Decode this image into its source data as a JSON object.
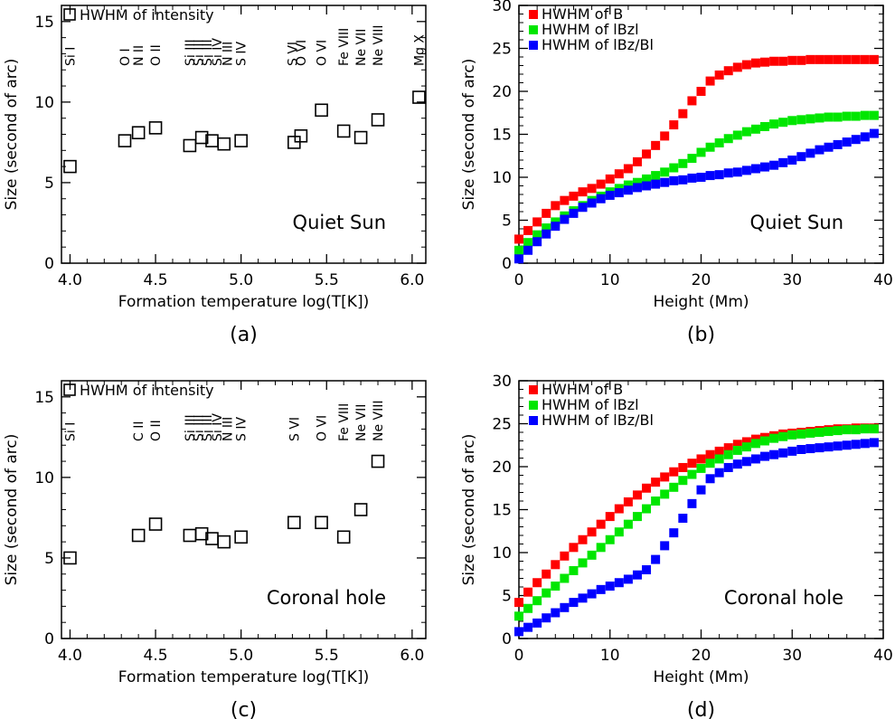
{
  "chart_data": [
    {
      "id": "a",
      "type": "scatter",
      "caption": "(a)",
      "xlabel": "Formation temperature log(T[K])",
      "ylabel": "Size (second of arc)",
      "annotation": "Quiet Sun",
      "xlim": [
        3.95,
        6.08
      ],
      "ylim": [
        0,
        16
      ],
      "xticks": [
        "4.0",
        "4.5",
        "5.0",
        "5.5",
        "6.0"
      ],
      "yticks": [
        "0",
        "5",
        "10",
        "15"
      ],
      "legend": [
        "HWHM of intensity"
      ],
      "marker_color": "#000000",
      "points": [
        [
          4.0,
          6.0
        ],
        [
          4.32,
          7.6
        ],
        [
          4.4,
          8.1
        ],
        [
          4.5,
          8.4
        ],
        [
          4.7,
          7.3
        ],
        [
          4.77,
          7.8
        ],
        [
          4.83,
          7.6
        ],
        [
          4.9,
          7.4
        ],
        [
          5.0,
          7.6
        ],
        [
          5.31,
          7.5
        ],
        [
          5.35,
          7.9
        ],
        [
          5.47,
          9.5
        ],
        [
          5.6,
          8.2
        ],
        [
          5.7,
          7.8
        ],
        [
          5.8,
          8.9
        ],
        [
          6.04,
          10.3
        ]
      ],
      "ion_labels": [
        {
          "x": 4.0,
          "text": "Si I"
        },
        {
          "x": 4.32,
          "text": "O I"
        },
        {
          "x": 4.4,
          "text": "N II"
        },
        {
          "x": 4.5,
          "text": "O II"
        },
        {
          "x": 4.7,
          "text": "Si III"
        },
        {
          "x": 4.75,
          "text": "Si III"
        },
        {
          "x": 4.8,
          "text": "Si III"
        },
        {
          "x": 4.86,
          "text": "Si IV"
        },
        {
          "x": 4.92,
          "text": "N III"
        },
        {
          "x": 5.0,
          "text": "S IV"
        },
        {
          "x": 5.3,
          "text": "S VI"
        },
        {
          "x": 5.35,
          "text": "O VI"
        },
        {
          "x": 5.47,
          "text": "O VI"
        },
        {
          "x": 5.6,
          "text": "Fe VIII"
        },
        {
          "x": 5.7,
          "text": "Ne VII"
        },
        {
          "x": 5.8,
          "text": "Ne VIII"
        },
        {
          "x": 6.04,
          "text": "Mg X"
        }
      ]
    },
    {
      "id": "b",
      "type": "scatter",
      "caption": "(b)",
      "xlabel": "Height (Mm)",
      "ylabel": "Size (second of arc)",
      "annotation": "Quiet Sun",
      "xlim": [
        0,
        40
      ],
      "ylim": [
        0,
        30
      ],
      "xticks": [
        "0",
        "10",
        "20",
        "30",
        "40"
      ],
      "yticks": [
        "0",
        "5",
        "10",
        "15",
        "20",
        "25",
        "30"
      ],
      "x": [
        0,
        1,
        2,
        3,
        4,
        5,
        6,
        7,
        8,
        9,
        10,
        11,
        12,
        13,
        14,
        15,
        16,
        17,
        18,
        19,
        20,
        21,
        22,
        23,
        24,
        25,
        26,
        27,
        28,
        29,
        30,
        31,
        32,
        33,
        34,
        35,
        36,
        37,
        38,
        39
      ],
      "series": [
        {
          "name": "HWHM of B",
          "color": "#ff0000",
          "values": [
            2.8,
            3.8,
            4.8,
            5.8,
            6.7,
            7.3,
            7.8,
            8.3,
            8.7,
            9.2,
            9.8,
            10.4,
            11.0,
            11.8,
            12.7,
            13.7,
            14.8,
            16.1,
            17.4,
            18.9,
            20.0,
            21.2,
            21.9,
            22.4,
            22.8,
            23.1,
            23.3,
            23.4,
            23.5,
            23.5,
            23.6,
            23.6,
            23.7,
            23.7,
            23.7,
            23.7,
            23.7,
            23.7,
            23.7,
            23.7
          ]
        },
        {
          "name": "HWHM of |Bz|",
          "color": "#00e600",
          "values": [
            1.5,
            2.4,
            3.3,
            4.1,
            4.8,
            5.5,
            6.1,
            6.7,
            7.3,
            7.8,
            8.3,
            8.7,
            9.1,
            9.4,
            9.8,
            10.2,
            10.6,
            11.1,
            11.6,
            12.2,
            12.9,
            13.5,
            14.0,
            14.5,
            14.9,
            15.3,
            15.6,
            15.9,
            16.2,
            16.4,
            16.6,
            16.7,
            16.8,
            16.9,
            17.0,
            17.0,
            17.1,
            17.1,
            17.2,
            17.2
          ]
        },
        {
          "name": "HWHM of |Bz/B|",
          "color": "#0000ff",
          "values": [
            0.5,
            1.5,
            2.5,
            3.4,
            4.3,
            5.1,
            5.8,
            6.5,
            7.0,
            7.5,
            7.9,
            8.2,
            8.5,
            8.8,
            9.0,
            9.2,
            9.4,
            9.6,
            9.7,
            9.9,
            10.0,
            10.2,
            10.3,
            10.5,
            10.6,
            10.8,
            11.0,
            11.2,
            11.4,
            11.7,
            12.0,
            12.4,
            12.8,
            13.2,
            13.5,
            13.8,
            14.1,
            14.4,
            14.7,
            15.1
          ]
        }
      ],
      "legend": [
        "HWHM of B",
        "HWHM of lBzl",
        "HWHM of lBz/Bl"
      ]
    },
    {
      "id": "c",
      "type": "scatter",
      "caption": "(c)",
      "xlabel": "Formation temperature log(T[K])",
      "ylabel": "Size (second of arc)",
      "annotation": "Coronal hole",
      "xlim": [
        3.95,
        6.08
      ],
      "ylim": [
        0,
        16
      ],
      "xticks": [
        "4.0",
        "4.5",
        "5.0",
        "5.5",
        "6.0"
      ],
      "yticks": [
        "0",
        "5",
        "10",
        "15"
      ],
      "legend": [
        "HWHM of intensity"
      ],
      "marker_color": "#000000",
      "points": [
        [
          4.0,
          5.0
        ],
        [
          4.4,
          6.4
        ],
        [
          4.5,
          7.1
        ],
        [
          4.7,
          6.4
        ],
        [
          4.77,
          6.5
        ],
        [
          4.83,
          6.2
        ],
        [
          4.9,
          6.0
        ],
        [
          5.0,
          6.3
        ],
        [
          5.31,
          7.2
        ],
        [
          5.47,
          7.2
        ],
        [
          5.6,
          6.3
        ],
        [
          5.7,
          8.0
        ],
        [
          5.8,
          11.0
        ]
      ],
      "ion_labels": [
        {
          "x": 4.0,
          "text": "Si I"
        },
        {
          "x": 4.4,
          "text": "C II"
        },
        {
          "x": 4.5,
          "text": "O II"
        },
        {
          "x": 4.7,
          "text": "Si III"
        },
        {
          "x": 4.75,
          "text": "Si III"
        },
        {
          "x": 4.8,
          "text": "Si III"
        },
        {
          "x": 4.86,
          "text": "Si IV"
        },
        {
          "x": 4.92,
          "text": "N III"
        },
        {
          "x": 5.0,
          "text": "S IV"
        },
        {
          "x": 5.31,
          "text": "S VI"
        },
        {
          "x": 5.47,
          "text": "O VI"
        },
        {
          "x": 5.6,
          "text": "Fe VIII"
        },
        {
          "x": 5.7,
          "text": "Ne VII"
        },
        {
          "x": 5.8,
          "text": "Ne VIII"
        }
      ]
    },
    {
      "id": "d",
      "type": "scatter",
      "caption": "(d)",
      "xlabel": "Height (Mm)",
      "ylabel": "Size (second of arc)",
      "annotation": "Coronal hole",
      "xlim": [
        0,
        40
      ],
      "ylim": [
        0,
        30
      ],
      "xticks": [
        "0",
        "10",
        "20",
        "30",
        "40"
      ],
      "yticks": [
        "0",
        "5",
        "10",
        "15",
        "20",
        "25",
        "30"
      ],
      "x": [
        0,
        1,
        2,
        3,
        4,
        5,
        6,
        7,
        8,
        9,
        10,
        11,
        12,
        13,
        14,
        15,
        16,
        17,
        18,
        19,
        20,
        21,
        22,
        23,
        24,
        25,
        26,
        27,
        28,
        29,
        30,
        31,
        32,
        33,
        34,
        35,
        36,
        37,
        38,
        39
      ],
      "series": [
        {
          "name": "HWHM of B",
          "color": "#ff0000",
          "values": [
            4.2,
            5.4,
            6.5,
            7.5,
            8.6,
            9.6,
            10.6,
            11.5,
            12.4,
            13.3,
            14.2,
            15.1,
            15.9,
            16.7,
            17.5,
            18.2,
            18.8,
            19.4,
            19.9,
            20.4,
            20.9,
            21.4,
            21.8,
            22.2,
            22.6,
            22.9,
            23.2,
            23.4,
            23.6,
            23.8,
            23.9,
            24.0,
            24.1,
            24.2,
            24.3,
            24.4,
            24.4,
            24.5,
            24.5,
            24.5
          ]
        },
        {
          "name": "HWHM of |Bz|",
          "color": "#00e600",
          "values": [
            2.6,
            3.5,
            4.4,
            5.3,
            6.1,
            7.0,
            7.9,
            8.8,
            9.7,
            10.6,
            11.5,
            12.4,
            13.3,
            14.2,
            15.1,
            16.0,
            16.8,
            17.6,
            18.4,
            19.1,
            19.8,
            20.4,
            20.9,
            21.4,
            21.9,
            22.3,
            22.7,
            23.0,
            23.3,
            23.5,
            23.7,
            23.8,
            23.9,
            24.0,
            24.1,
            24.2,
            24.3,
            24.3,
            24.4,
            24.4
          ]
        },
        {
          "name": "HWHM of |Bz/B|",
          "color": "#0000ff",
          "values": [
            0.8,
            1.3,
            1.8,
            2.4,
            3.0,
            3.6,
            4.2,
            4.7,
            5.2,
            5.7,
            6.1,
            6.5,
            6.9,
            7.4,
            8.0,
            9.2,
            10.8,
            12.3,
            14.0,
            15.7,
            17.3,
            18.6,
            19.3,
            19.9,
            20.3,
            20.6,
            20.9,
            21.2,
            21.4,
            21.6,
            21.8,
            22.0,
            22.1,
            22.2,
            22.3,
            22.4,
            22.5,
            22.6,
            22.7,
            22.8
          ]
        }
      ],
      "legend": [
        "HWHM of B",
        "HWHM of lBzl",
        "HWHM of lBz/Bl"
      ]
    }
  ]
}
